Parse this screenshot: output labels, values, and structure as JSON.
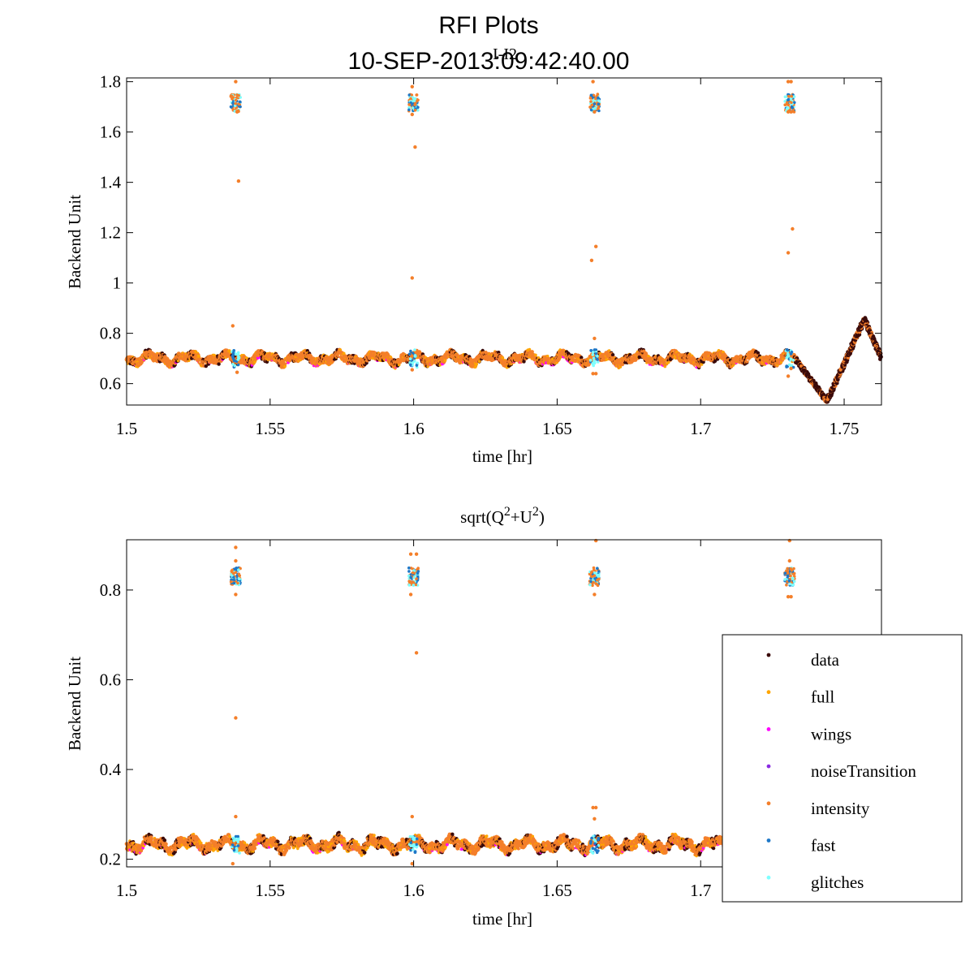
{
  "figure": {
    "title": "RFI Plots",
    "subtitle": "10-SEP-2013:09:42:40.00"
  },
  "chart_data": [
    {
      "type": "scatter",
      "title": "I-I2",
      "xlabel": "time [hr]",
      "ylabel": "Backend Unit",
      "xlim": [
        1.5,
        1.763
      ],
      "ylim": [
        0.515,
        1.815
      ],
      "xticks": [
        1.5,
        1.55,
        1.6,
        1.65,
        1.7,
        1.75
      ],
      "xtick_labels": [
        "1.5",
        "1.55",
        "1.6",
        "1.65",
        "1.7",
        "1.75"
      ],
      "yticks": [
        0.6,
        0.8,
        1.0,
        1.2,
        1.4,
        1.6,
        1.8
      ],
      "ytick_labels": [
        "0.6",
        "0.8",
        "1",
        "1.2",
        "1.4",
        "1.6",
        "1.8"
      ],
      "baseline": 0.7,
      "band_amplitude": 0.022,
      "calibration_times": [
        1.538,
        1.6,
        1.663,
        1.731
      ],
      "calibration_level": 1.715,
      "drift": {
        "start": 1.733,
        "min_time": 1.744,
        "min_value": 0.53,
        "max_time": 1.757,
        "max_value": 0.855,
        "end_time": 1.763,
        "end_value": 0.7
      },
      "outliers": [
        {
          "x": 1.538,
          "y": 1.8
        },
        {
          "x": 1.5385,
          "y": 1.68
        },
        {
          "x": 1.539,
          "y": 1.405
        },
        {
          "x": 1.537,
          "y": 0.83
        },
        {
          "x": 1.5385,
          "y": 0.645
        },
        {
          "x": 1.5995,
          "y": 1.78
        },
        {
          "x": 1.5995,
          "y": 1.67
        },
        {
          "x": 1.6005,
          "y": 1.54
        },
        {
          "x": 1.5995,
          "y": 1.02
        },
        {
          "x": 1.5995,
          "y": 0.655
        },
        {
          "x": 1.6625,
          "y": 1.8
        },
        {
          "x": 1.663,
          "y": 1.68
        },
        {
          "x": 1.6635,
          "y": 1.145
        },
        {
          "x": 1.662,
          "y": 1.09
        },
        {
          "x": 1.6625,
          "y": 0.64
        },
        {
          "x": 1.6635,
          "y": 0.64
        },
        {
          "x": 1.663,
          "y": 0.78
        },
        {
          "x": 1.7305,
          "y": 1.8
        },
        {
          "x": 1.7315,
          "y": 1.8
        },
        {
          "x": 1.7305,
          "y": 1.68
        },
        {
          "x": 1.7315,
          "y": 1.68
        },
        {
          "x": 1.732,
          "y": 1.215
        },
        {
          "x": 1.7305,
          "y": 1.12
        },
        {
          "x": 1.7315,
          "y": 0.66
        },
        {
          "x": 1.7305,
          "y": 0.63
        }
      ]
    },
    {
      "type": "scatter",
      "title": "sqrt(Q2+U2)",
      "title_parts": {
        "base1": "sqrt(Q",
        "sup1": "2",
        "base2": "+U",
        "sup2": "2",
        "base3": ")"
      },
      "xlabel": "time [hr]",
      "ylabel": "Backend Unit",
      "xlim": [
        1.5,
        1.763
      ],
      "ylim": [
        0.183,
        0.912
      ],
      "xticks": [
        1.5,
        1.55,
        1.6,
        1.65,
        1.7
      ],
      "xtick_labels": [
        "1.5",
        "1.55",
        "1.6",
        "1.65",
        "1.7"
      ],
      "yticks": [
        0.2,
        0.4,
        0.6,
        0.8
      ],
      "ytick_labels": [
        "0.2",
        "0.4",
        "0.6",
        "0.8"
      ],
      "baseline": 0.233,
      "band_amplitude": 0.015,
      "calibration_times": [
        1.538,
        1.6,
        1.663,
        1.731
      ],
      "calibration_level": 0.83,
      "outliers": [
        {
          "x": 1.538,
          "y": 0.895
        },
        {
          "x": 1.538,
          "y": 0.865
        },
        {
          "x": 1.538,
          "y": 0.79
        },
        {
          "x": 1.538,
          "y": 0.515
        },
        {
          "x": 1.538,
          "y": 0.295
        },
        {
          "x": 1.537,
          "y": 0.19
        },
        {
          "x": 1.599,
          "y": 0.88
        },
        {
          "x": 1.601,
          "y": 0.88
        },
        {
          "x": 1.599,
          "y": 0.79
        },
        {
          "x": 1.601,
          "y": 0.66
        },
        {
          "x": 1.5995,
          "y": 0.295
        },
        {
          "x": 1.5995,
          "y": 0.19
        },
        {
          "x": 1.6635,
          "y": 0.91
        },
        {
          "x": 1.663,
          "y": 0.79
        },
        {
          "x": 1.6625,
          "y": 0.315
        },
        {
          "x": 1.6635,
          "y": 0.315
        },
        {
          "x": 1.663,
          "y": 0.29
        },
        {
          "x": 1.731,
          "y": 0.91
        },
        {
          "x": 1.731,
          "y": 0.865
        },
        {
          "x": 1.7305,
          "y": 0.785
        },
        {
          "x": 1.7315,
          "y": 0.785
        }
      ]
    }
  ],
  "legend": {
    "position": "right",
    "entries": [
      {
        "label": "data",
        "color": "#3a0a0a"
      },
      {
        "label": "full",
        "color": "#ffa500"
      },
      {
        "label": "wings",
        "color": "#ff00ff"
      },
      {
        "label": "noiseTransition",
        "color": "#8a2be2"
      },
      {
        "label": "intensity",
        "color": "#f47f2a"
      },
      {
        "label": "fast",
        "color": "#1e78c8"
      },
      {
        "label": "glitches",
        "color": "#7fffff"
      }
    ]
  },
  "colors": {
    "data": "#3a0a0a",
    "full": "#ffa500",
    "wings": "#ff00ff",
    "noiseTransition": "#8a2be2",
    "intensity": "#f47f2a",
    "fast": "#1e78c8",
    "glitches": "#7fffff",
    "axis": "#000000"
  }
}
